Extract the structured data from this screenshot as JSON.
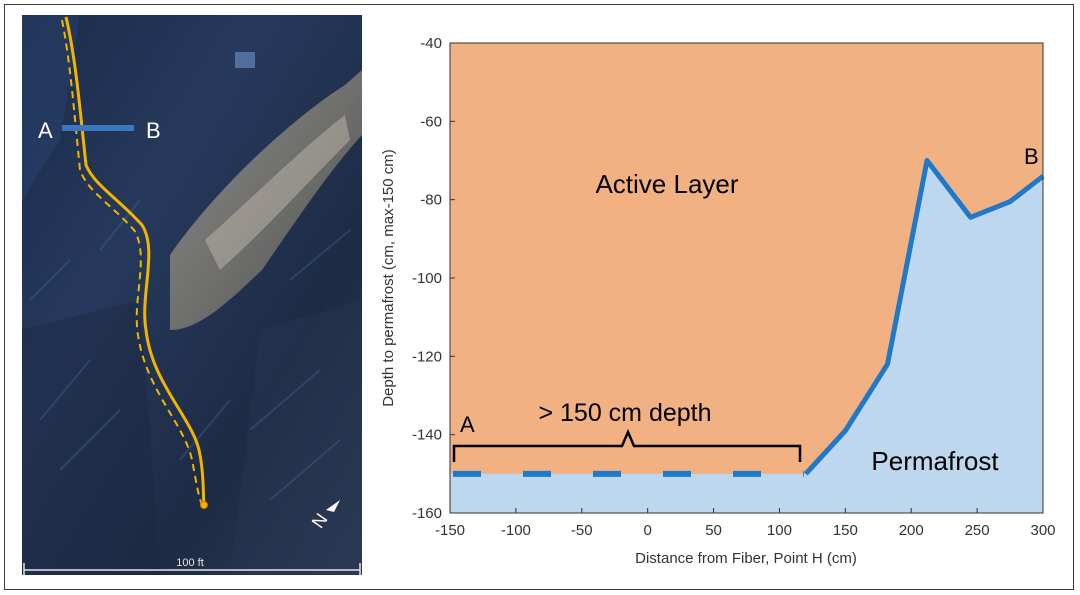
{
  "photo": {
    "label_a": "A",
    "label_b": "B",
    "scale_label": "100 ft",
    "north_label": "N",
    "colors": {
      "trace": "#f3b400",
      "transect": "#3a77bd"
    }
  },
  "chart_data": {
    "type": "area",
    "xlabel": "Distance from Fiber, Point H (cm)",
    "ylabel": "Depth to permafrost (cm, max-150 cm)",
    "xlim": [
      -150,
      300
    ],
    "ylim": [
      -160,
      -40
    ],
    "xticks": [
      -150,
      -100,
      -50,
      0,
      50,
      100,
      150,
      200,
      250,
      300
    ],
    "yticks": [
      -40,
      -60,
      -80,
      -100,
      -120,
      -140,
      -160
    ],
    "grid": false,
    "legend": "none",
    "dashed_segment": {
      "x": [
        -150,
        120
      ],
      "y": [
        -150,
        -150
      ]
    },
    "series": [
      {
        "x": [
          120,
          150,
          182,
          212,
          245,
          275,
          300
        ],
        "y": [
          -150,
          -139,
          -122,
          -70,
          -84.5,
          -80.5,
          -74
        ]
      }
    ],
    "regions": {
      "above": "Active Layer",
      "below": "Permafrost"
    },
    "annotations": {
      "brace_label": "> 150 cm depth",
      "point_a": "A",
      "point_b": "B"
    },
    "colors": {
      "active": "#f2b183",
      "permafrost": "#bdd7ee",
      "line": "#1f78c8"
    }
  }
}
